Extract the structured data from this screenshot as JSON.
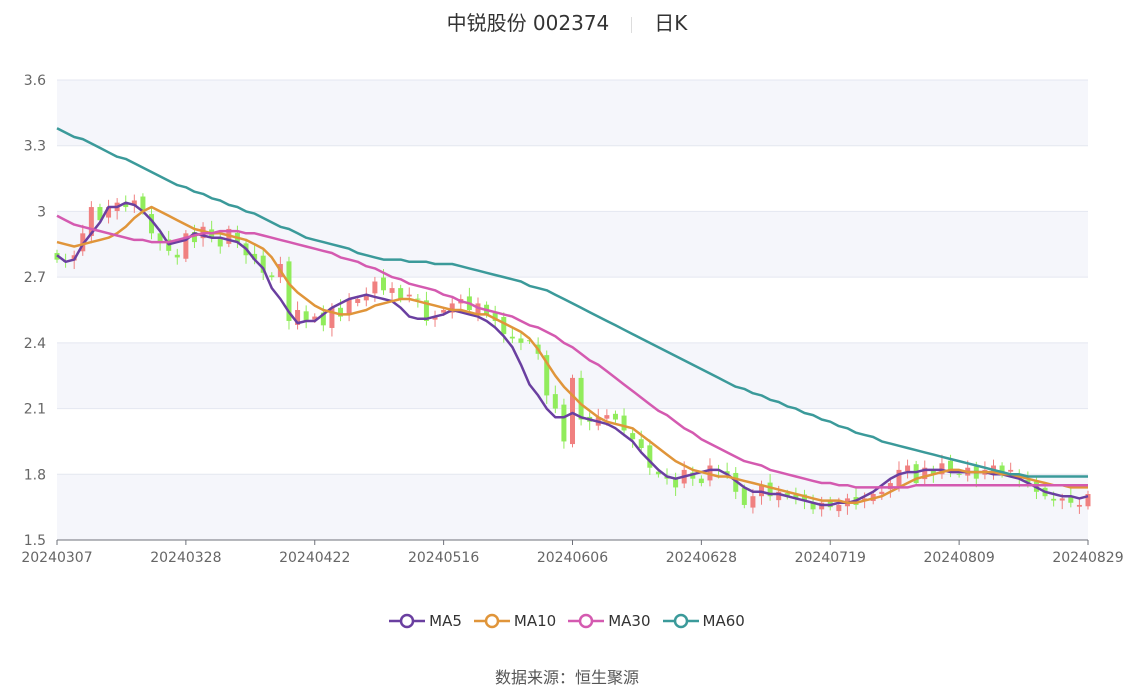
{
  "header": {
    "stock": "中锐股份 002374",
    "period": "日K"
  },
  "source": {
    "label": "数据来源：",
    "name": "恒生聚源"
  },
  "colors": {
    "up": "#f08080",
    "down": "#91ec5c",
    "MA5": "#6a3fa0",
    "MA10": "#e0953a",
    "MA30": "#d45ab0",
    "MA60": "#3b9a9a",
    "grid": "#e4e7f0",
    "band": "#f5f6fb"
  },
  "chart_data": {
    "type": "candlestick",
    "ylim": [
      1.5,
      3.6
    ],
    "yticks": [
      "3.6",
      "3.3",
      "3",
      "2.7",
      "2.4",
      "2.1",
      "1.8",
      "1.5"
    ],
    "xtick_labels": [
      "20240307",
      "20240328",
      "20240422",
      "20240516",
      "20240606",
      "20240628",
      "20240719",
      "20240809",
      "20240829"
    ],
    "xtick_index": [
      0,
      15,
      30,
      45,
      60,
      75,
      90,
      105,
      120
    ],
    "num_days": 121,
    "closes": [
      2.78,
      2.77,
      2.8,
      2.9,
      3.02,
      2.96,
      3.02,
      3.04,
      3.02,
      3.05,
      3.0,
      2.9,
      2.86,
      2.82,
      2.79,
      2.9,
      2.86,
      2.93,
      2.88,
      2.84,
      2.92,
      2.86,
      2.8,
      2.78,
      2.72,
      2.7,
      2.76,
      2.5,
      2.55,
      2.5,
      2.52,
      2.48,
      2.56,
      2.52,
      2.6,
      2.6,
      2.62,
      2.68,
      2.64,
      2.65,
      2.6,
      2.62,
      2.6,
      2.5,
      2.52,
      2.55,
      2.58,
      2.6,
      2.55,
      2.58,
      2.53,
      2.5,
      2.44,
      2.42,
      2.4,
      2.41,
      2.35,
      2.16,
      2.1,
      1.95,
      2.24,
      2.05,
      2.04,
      2.06,
      2.07,
      2.05,
      2.0,
      1.96,
      1.92,
      1.83,
      1.8,
      1.78,
      1.74,
      1.82,
      1.78,
      1.76,
      1.84,
      1.82,
      1.8,
      1.72,
      1.66,
      1.7,
      1.75,
      1.7,
      1.72,
      1.7,
      1.69,
      1.68,
      1.64,
      1.67,
      1.65,
      1.66,
      1.69,
      1.66,
      1.69,
      1.71,
      1.72,
      1.76,
      1.82,
      1.84,
      1.76,
      1.83,
      1.8,
      1.85,
      1.82,
      1.8,
      1.83,
      1.78,
      1.82,
      1.84,
      1.8,
      1.82,
      1.78,
      1.76,
      1.72,
      1.7,
      1.68,
      1.69,
      1.67,
      1.66,
      1.71
    ],
    "series": [
      {
        "name": "MA5",
        "values": [
          2.8,
          2.77,
          2.78,
          2.85,
          2.9,
          2.95,
          3.02,
          3.02,
          3.04,
          3.03,
          3.0,
          2.96,
          2.91,
          2.85,
          2.86,
          2.87,
          2.9,
          2.89,
          2.88,
          2.88,
          2.87,
          2.86,
          2.83,
          2.78,
          2.74,
          2.65,
          2.6,
          2.54,
          2.49,
          2.5,
          2.5,
          2.53,
          2.56,
          2.58,
          2.6,
          2.61,
          2.62,
          2.61,
          2.6,
          2.59,
          2.56,
          2.52,
          2.51,
          2.51,
          2.52,
          2.53,
          2.55,
          2.54,
          2.53,
          2.52,
          2.5,
          2.47,
          2.43,
          2.38,
          2.3,
          2.21,
          2.16,
          2.1,
          2.06,
          2.06,
          2.08,
          2.06,
          2.05,
          2.04,
          2.03,
          2.01,
          1.98,
          1.95,
          1.9,
          1.86,
          1.82,
          1.79,
          1.78,
          1.79,
          1.8,
          1.81,
          1.82,
          1.82,
          1.8,
          1.77,
          1.74,
          1.72,
          1.72,
          1.71,
          1.71,
          1.7,
          1.69,
          1.68,
          1.67,
          1.66,
          1.66,
          1.67,
          1.67,
          1.68,
          1.7,
          1.72,
          1.75,
          1.78,
          1.8,
          1.81,
          1.81,
          1.82,
          1.82,
          1.82,
          1.81,
          1.81,
          1.81,
          1.81,
          1.81,
          1.8,
          1.8,
          1.79,
          1.78,
          1.76,
          1.74,
          1.72,
          1.71,
          1.7,
          1.7,
          1.69,
          1.7
        ]
      },
      {
        "name": "MA10",
        "values": [
          2.86,
          2.85,
          2.84,
          2.85,
          2.86,
          2.87,
          2.88,
          2.9,
          2.93,
          2.97,
          3.0,
          3.02,
          3.0,
          2.98,
          2.96,
          2.94,
          2.92,
          2.91,
          2.9,
          2.9,
          2.89,
          2.88,
          2.87,
          2.85,
          2.83,
          2.79,
          2.73,
          2.67,
          2.63,
          2.6,
          2.57,
          2.55,
          2.54,
          2.53,
          2.53,
          2.54,
          2.55,
          2.57,
          2.58,
          2.59,
          2.6,
          2.6,
          2.59,
          2.58,
          2.57,
          2.56,
          2.55,
          2.55,
          2.54,
          2.53,
          2.53,
          2.51,
          2.49,
          2.47,
          2.45,
          2.42,
          2.37,
          2.31,
          2.25,
          2.2,
          2.16,
          2.12,
          2.09,
          2.06,
          2.04,
          2.03,
          2.02,
          2.01,
          1.98,
          1.95,
          1.92,
          1.89,
          1.86,
          1.84,
          1.82,
          1.81,
          1.8,
          1.79,
          1.79,
          1.78,
          1.77,
          1.76,
          1.75,
          1.74,
          1.73,
          1.72,
          1.71,
          1.7,
          1.69,
          1.68,
          1.68,
          1.68,
          1.67,
          1.67,
          1.68,
          1.69,
          1.7,
          1.72,
          1.74,
          1.76,
          1.78,
          1.79,
          1.8,
          1.81,
          1.82,
          1.82,
          1.81,
          1.81,
          1.81,
          1.81,
          1.8,
          1.8,
          1.79,
          1.78,
          1.77,
          1.76,
          1.75,
          1.75,
          1.74,
          1.74,
          1.74
        ]
      },
      {
        "name": "MA30",
        "values": [
          2.98,
          2.96,
          2.94,
          2.93,
          2.92,
          2.91,
          2.9,
          2.89,
          2.88,
          2.87,
          2.87,
          2.86,
          2.86,
          2.86,
          2.87,
          2.88,
          2.89,
          2.9,
          2.9,
          2.91,
          2.91,
          2.91,
          2.9,
          2.9,
          2.89,
          2.88,
          2.87,
          2.86,
          2.85,
          2.84,
          2.83,
          2.82,
          2.81,
          2.79,
          2.78,
          2.77,
          2.75,
          2.74,
          2.72,
          2.7,
          2.69,
          2.67,
          2.66,
          2.65,
          2.64,
          2.62,
          2.61,
          2.59,
          2.58,
          2.56,
          2.55,
          2.54,
          2.53,
          2.52,
          2.5,
          2.48,
          2.47,
          2.45,
          2.43,
          2.4,
          2.38,
          2.35,
          2.32,
          2.3,
          2.27,
          2.24,
          2.21,
          2.18,
          2.15,
          2.12,
          2.09,
          2.07,
          2.04,
          2.01,
          1.99,
          1.96,
          1.94,
          1.92,
          1.9,
          1.88,
          1.86,
          1.85,
          1.84,
          1.82,
          1.81,
          1.8,
          1.79,
          1.78,
          1.77,
          1.76,
          1.76,
          1.75,
          1.75,
          1.74,
          1.74,
          1.74,
          1.74,
          1.74,
          1.74,
          1.74,
          1.75,
          1.75,
          1.75,
          1.75,
          1.75,
          1.75,
          1.75,
          1.75,
          1.75,
          1.75,
          1.75,
          1.75,
          1.75,
          1.75,
          1.75,
          1.75,
          1.75,
          1.75,
          1.75,
          1.75,
          1.75
        ]
      },
      {
        "name": "MA60",
        "values": [
          3.38,
          3.36,
          3.34,
          3.33,
          3.31,
          3.29,
          3.27,
          3.25,
          3.24,
          3.22,
          3.2,
          3.18,
          3.16,
          3.14,
          3.12,
          3.11,
          3.09,
          3.08,
          3.06,
          3.05,
          3.03,
          3.02,
          3.0,
          2.99,
          2.97,
          2.95,
          2.93,
          2.92,
          2.9,
          2.88,
          2.87,
          2.86,
          2.85,
          2.84,
          2.83,
          2.81,
          2.8,
          2.79,
          2.78,
          2.78,
          2.78,
          2.77,
          2.77,
          2.77,
          2.76,
          2.76,
          2.76,
          2.75,
          2.74,
          2.73,
          2.72,
          2.71,
          2.7,
          2.69,
          2.68,
          2.66,
          2.65,
          2.64,
          2.62,
          2.6,
          2.58,
          2.56,
          2.54,
          2.52,
          2.5,
          2.48,
          2.46,
          2.44,
          2.42,
          2.4,
          2.38,
          2.36,
          2.34,
          2.32,
          2.3,
          2.28,
          2.26,
          2.24,
          2.22,
          2.2,
          2.19,
          2.17,
          2.16,
          2.14,
          2.13,
          2.11,
          2.1,
          2.08,
          2.07,
          2.05,
          2.04,
          2.02,
          2.01,
          1.99,
          1.98,
          1.97,
          1.95,
          1.94,
          1.93,
          1.92,
          1.91,
          1.9,
          1.89,
          1.88,
          1.87,
          1.86,
          1.85,
          1.84,
          1.83,
          1.82,
          1.81,
          1.8,
          1.8,
          1.79,
          1.79,
          1.79,
          1.79,
          1.79,
          1.79,
          1.79,
          1.79
        ]
      }
    ]
  }
}
